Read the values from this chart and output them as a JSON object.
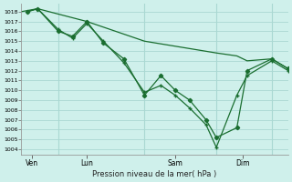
{
  "background_color": "#cff0eb",
  "grid_color": "#aad8d2",
  "line_color": "#1a6e30",
  "xlabel": "Pression niveau de la mer( hPa )",
  "ylim_min": 1003.5,
  "ylim_max": 1018.8,
  "yticks": [
    1004,
    1005,
    1006,
    1007,
    1008,
    1009,
    1010,
    1011,
    1012,
    1013,
    1014,
    1015,
    1016,
    1017,
    1018
  ],
  "xlim_min": 0,
  "xlim_max": 13,
  "xtick_labels": [
    "Ven",
    "Lun",
    "Sam",
    "Dim"
  ],
  "xtick_positions": [
    0.5,
    3.2,
    7.5,
    10.8
  ],
  "vline_positions": [
    1.8,
    6.0,
    9.5,
    12.2
  ],
  "series1_x": [
    0.3,
    0.8,
    1.8,
    2.5,
    3.2,
    4.0,
    5.0,
    6.0,
    6.8,
    7.5,
    8.2,
    9.0,
    9.5,
    10.5,
    11.0,
    12.2,
    13.0
  ],
  "series1_y": [
    1018.0,
    1018.3,
    1016.0,
    1015.5,
    1017.0,
    1014.8,
    1013.2,
    1009.5,
    1011.5,
    1010.0,
    1009.0,
    1007.0,
    1005.2,
    1006.2,
    1012.0,
    1013.2,
    1012.2
  ],
  "series2_x": [
    0.3,
    0.8,
    1.8,
    2.5,
    3.2,
    4.0,
    5.0,
    6.0,
    6.8,
    7.5,
    8.2,
    9.0,
    9.5,
    10.5,
    11.0,
    12.2,
    13.0
  ],
  "series2_y": [
    1018.0,
    1018.3,
    1016.2,
    1015.3,
    1016.8,
    1015.0,
    1012.8,
    1009.8,
    1010.5,
    1009.5,
    1008.2,
    1006.5,
    1004.2,
    1009.5,
    1011.5,
    1013.0,
    1012.0
  ],
  "series3_x": [
    0.0,
    0.8,
    3.2,
    6.0,
    9.5,
    10.5,
    11.0,
    12.2,
    13.0
  ],
  "series3_y": [
    1018.0,
    1018.3,
    1017.0,
    1015.0,
    1013.8,
    1013.5,
    1013.0,
    1013.2,
    1012.2
  ]
}
